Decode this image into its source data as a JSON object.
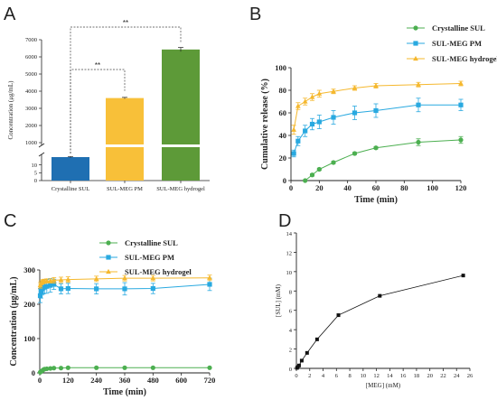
{
  "panels": {
    "a": "A",
    "b": "B",
    "c": "C",
    "d": "D"
  },
  "chart_data": [
    {
      "panel": "A",
      "type": "bar",
      "ylabel": "Concentration (μg/mL)",
      "categories": [
        "Crystalline SUL",
        "SUL-MEG PM",
        "SUL-MEG hydrogel"
      ],
      "values": [
        15,
        3600,
        6430
      ],
      "errors": [
        0.4,
        40,
        120
      ],
      "colors": [
        "#1f6fb2",
        "#f8c039",
        "#5d9a38"
      ],
      "y_ticks_lower": [
        "0",
        "5",
        "10"
      ],
      "y_ticks_upper": [
        "1000",
        "2000",
        "3000",
        "4000",
        "5000",
        "6000",
        "7000"
      ],
      "axis_break": [
        15,
        1000
      ],
      "significance": [
        {
          "from": 0,
          "to": 2,
          "label": "**"
        },
        {
          "from": 0,
          "to": 1,
          "label": "**"
        }
      ]
    },
    {
      "panel": "B",
      "type": "line",
      "xlabel": "Time (min)",
      "ylabel": "Cumulative release (%)",
      "xlim": [
        0,
        120
      ],
      "ylim": [
        0,
        100
      ],
      "x_ticks": [
        0,
        20,
        40,
        60,
        80,
        100,
        120
      ],
      "y_ticks": [
        0,
        20,
        40,
        60,
        80,
        100
      ],
      "x": [
        0,
        5,
        10,
        15,
        20,
        30,
        45,
        60,
        90,
        120
      ],
      "series": [
        {
          "name": "Crystalline SUL",
          "color": "#4caf50",
          "marker": "circle",
          "x": [
            10,
            15,
            20,
            30,
            45,
            60,
            90,
            120
          ],
          "values": [
            0,
            5,
            10,
            16,
            24,
            29,
            34,
            36
          ],
          "errors": [
            0,
            1,
            1,
            1,
            1,
            1,
            3,
            3
          ]
        },
        {
          "name": "SUL-MEG PM",
          "color": "#29a9e0",
          "marker": "square",
          "x": [
            2,
            5,
            10,
            15,
            20,
            30,
            45,
            60,
            90,
            120
          ],
          "values": [
            24,
            35,
            44,
            50,
            52,
            56,
            60,
            62,
            67,
            67
          ],
          "errors": [
            3,
            4,
            5,
            5,
            6,
            6,
            6,
            6,
            6,
            5
          ]
        },
        {
          "name": "SUL-MEG hydrogel",
          "color": "#f5b82e",
          "marker": "triangle",
          "x": [
            2,
            5,
            10,
            15,
            20,
            30,
            45,
            60,
            90,
            120
          ],
          "values": [
            45,
            66,
            70,
            74,
            77,
            79,
            82,
            84,
            85,
            86
          ],
          "errors": [
            4,
            3,
            3,
            3,
            3,
            2,
            2,
            2,
            2,
            2
          ]
        }
      ]
    },
    {
      "panel": "C",
      "type": "line",
      "xlabel": "Time (min)",
      "ylabel": "Concentration (μg/mL)",
      "xlim": [
        0,
        720
      ],
      "ylim": [
        0,
        300
      ],
      "x_ticks": [
        0,
        120,
        240,
        360,
        480,
        600,
        720
      ],
      "y_ticks": [
        0,
        100,
        200,
        300
      ],
      "series": [
        {
          "name": "Crystalline SUL",
          "color": "#4caf50",
          "marker": "circle",
          "x": [
            2,
            5,
            10,
            15,
            20,
            30,
            45,
            60,
            90,
            120,
            240,
            360,
            480,
            720
          ],
          "values": [
            2,
            4,
            6,
            9,
            11,
            12,
            13,
            14,
            14,
            15,
            15,
            15,
            15,
            15
          ],
          "errors": [
            0,
            0,
            0,
            0,
            0,
            0,
            0,
            0,
            0,
            0,
            0,
            0,
            0,
            0
          ]
        },
        {
          "name": "SUL-MEG PM",
          "color": "#29a9e0",
          "marker": "square",
          "x": [
            2,
            5,
            10,
            15,
            20,
            30,
            45,
            60,
            90,
            120,
            240,
            360,
            480,
            720
          ],
          "values": [
            225,
            238,
            245,
            248,
            250,
            252,
            255,
            258,
            245,
            246,
            245,
            245,
            246,
            258
          ],
          "errors": [
            20,
            20,
            18,
            18,
            18,
            20,
            20,
            15,
            15,
            15,
            15,
            18,
            15,
            18
          ]
        },
        {
          "name": "SUL-MEG hydrogel",
          "color": "#f5b82e",
          "marker": "triangle",
          "x": [
            2,
            5,
            10,
            15,
            20,
            30,
            45,
            60,
            90,
            120,
            240,
            360,
            480,
            720
          ],
          "values": [
            255,
            262,
            265,
            266,
            267,
            268,
            268,
            270,
            271,
            272,
            274,
            276,
            276,
            277
          ],
          "errors": [
            8,
            6,
            6,
            6,
            6,
            6,
            6,
            8,
            8,
            8,
            8,
            8,
            8,
            8
          ]
        }
      ]
    },
    {
      "panel": "D",
      "type": "line",
      "xlabel": "[MEG] (mM)",
      "ylabel": "[SUL] (mM)",
      "xlim": [
        0,
        26
      ],
      "ylim": [
        0,
        14
      ],
      "x_ticks": [
        0,
        2,
        4,
        6,
        8,
        10,
        12,
        14,
        16,
        18,
        20,
        22,
        24,
        26
      ],
      "y_ticks": [
        0,
        2,
        4,
        6,
        8,
        10,
        12,
        14
      ],
      "series": [
        {
          "color": "#111111",
          "marker": "square",
          "x": [
            0.1,
            0.2,
            0.4,
            0.8,
            1.6,
            3.1,
            6.3,
            12.5,
            25
          ],
          "values": [
            0.05,
            0.15,
            0.3,
            0.8,
            1.6,
            3.0,
            5.5,
            7.5,
            9.6
          ]
        }
      ]
    }
  ]
}
